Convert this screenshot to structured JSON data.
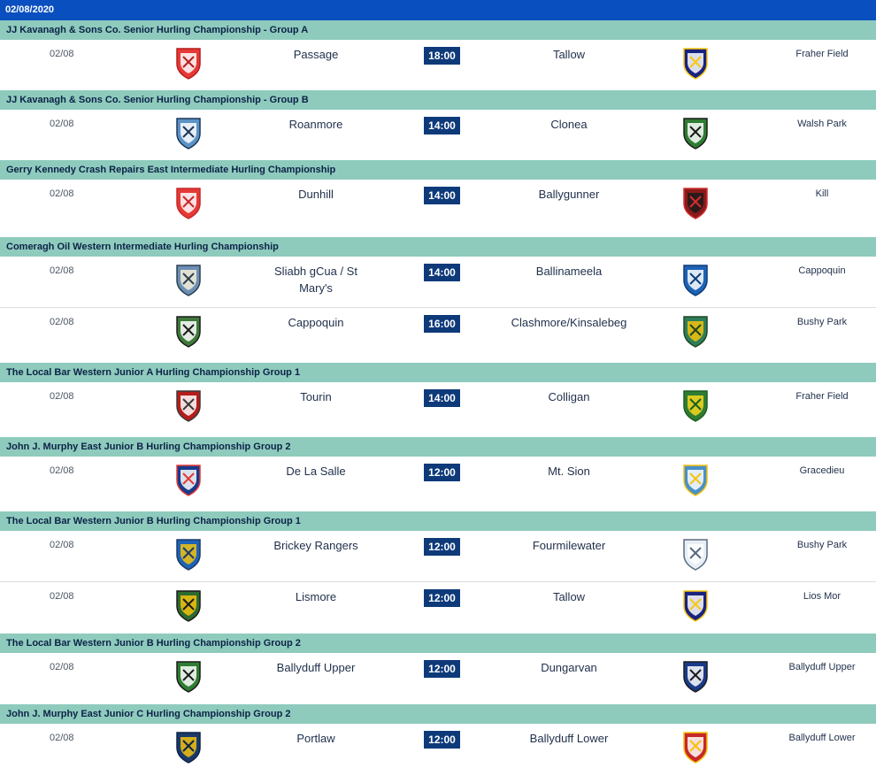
{
  "date_header": "02/08/2020",
  "colors": {
    "date_bar": "#0a4fbf",
    "comp_header": "#8ecbbd",
    "time_badge": "#0e3a7a"
  },
  "groups": [
    {
      "competition": "JJ Kavanagh & Sons Co. Senior Hurling Championship - Group A",
      "fixtures": [
        {
          "date": "02/08",
          "home": "Passage",
          "time": "18:00",
          "away": "Tallow",
          "venue": "Fraher Field",
          "home_crest": "passage-crest-icon",
          "away_crest": "tallow-crest-icon",
          "home_colors": [
            "#e53935",
            "#ffffff",
            "#b71c1c"
          ],
          "away_colors": [
            "#1a237e",
            "#ffffff",
            "#f9c80e"
          ]
        }
      ]
    },
    {
      "competition": "JJ Kavanagh & Sons Co. Senior Hurling Championship - Group B",
      "fixtures": [
        {
          "date": "02/08",
          "home": "Roanmore",
          "time": "14:00",
          "away": "Clonea",
          "venue": "Walsh Park",
          "home_crest": "roanmore-crest-icon",
          "away_crest": "clonea-crest-icon",
          "home_colors": [
            "#5b93c7",
            "#ffffff",
            "#1d3557"
          ],
          "away_colors": [
            "#2e7d32",
            "#ffffff",
            "#1b1b1b"
          ]
        }
      ]
    },
    {
      "competition": "Gerry Kennedy Crash Repairs East Intermediate Hurling Championship",
      "fixtures": [
        {
          "date": "02/08",
          "home": "Dunhill",
          "time": "14:00",
          "away": "Ballygunner",
          "venue": "Kill",
          "home_crest": "dunhill-crest-icon",
          "away_crest": "ballygunner-crest-icon",
          "home_colors": [
            "#e53935",
            "#ffffff",
            "#c62828"
          ],
          "away_colors": [
            "#8b1a1a",
            "#1b1b1b",
            "#d32f2f"
          ]
        }
      ]
    },
    {
      "competition": "Comeragh Oil Western Intermediate Hurling Championship",
      "fixtures": [
        {
          "date": "02/08",
          "home": "Sliabh gCua / St\nMary's",
          "time": "14:00",
          "away": "Ballinameela",
          "venue": "Cappoquin",
          "home_crest": "sliabh-gcua-crest-icon",
          "away_crest": "ballinameela-crest-icon",
          "home_colors": [
            "#6d8fb5",
            "#f5f0d8",
            "#2c3e50"
          ],
          "away_colors": [
            "#1e63b5",
            "#ffffff",
            "#0d3c7a"
          ]
        },
        {
          "date": "02/08",
          "home": "Cappoquin",
          "time": "16:00",
          "away": "Clashmore/Kinsalebeg",
          "venue": "Bushy Park",
          "home_crest": "cappoquin-crest-icon",
          "away_crest": "clashmore-crest-icon",
          "home_colors": [
            "#3e7a3a",
            "#ffffff",
            "#1b1b1b"
          ],
          "away_colors": [
            "#2e7d5b",
            "#f4c20d",
            "#1e4620"
          ]
        }
      ]
    },
    {
      "competition": "The Local Bar Western Junior A Hurling Championship Group 1",
      "fixtures": [
        {
          "date": "02/08",
          "home": "Tourin",
          "time": "14:00",
          "away": "Colligan",
          "venue": "Fraher Field",
          "home_crest": "tourin-crest-icon",
          "away_crest": "colligan-crest-icon",
          "home_colors": [
            "#b71c1c",
            "#ffffff",
            "#3a3a3a"
          ],
          "away_colors": [
            "#2e7d32",
            "#f9d71c",
            "#1b5e20"
          ]
        }
      ]
    },
    {
      "competition": "John J. Murphy East Junior B Hurling Championship Group 2",
      "fixtures": [
        {
          "date": "02/08",
          "home": "De La Salle",
          "time": "12:00",
          "away": "Mt. Sion",
          "venue": "Gracedieu",
          "home_crest": "de-la-salle-crest-icon",
          "away_crest": "mt-sion-crest-icon",
          "home_colors": [
            "#1a3a8a",
            "#ffffff",
            "#e53935"
          ],
          "away_colors": [
            "#4a90c8",
            "#ffffff",
            "#f4c20d"
          ]
        }
      ]
    },
    {
      "competition": "The Local Bar Western Junior B Hurling Championship Group 1",
      "fixtures": [
        {
          "date": "02/08",
          "home": "Brickey Rangers",
          "time": "12:00",
          "away": "Fourmilewater",
          "venue": "Bushy Park",
          "home_crest": "brickey-rangers-crest-icon",
          "away_crest": "fourmilewater-crest-icon",
          "home_colors": [
            "#1e63b5",
            "#f4c20d",
            "#1a3a6a"
          ],
          "away_colors": [
            "#e8eef5",
            "#ffffff",
            "#5a6b80"
          ]
        },
        {
          "date": "02/08",
          "home": "Lismore",
          "time": "12:00",
          "away": "Tallow",
          "venue": "Lios Mor",
          "home_crest": "lismore-crest-icon",
          "away_crest": "tallow-crest-icon",
          "home_colors": [
            "#2e6b2e",
            "#f4c20d",
            "#1b1b1b"
          ],
          "away_colors": [
            "#1a237e",
            "#ffffff",
            "#f9c80e"
          ]
        }
      ]
    },
    {
      "competition": "The Local Bar Western Junior B Hurling Championship Group 2",
      "fixtures": [
        {
          "date": "02/08",
          "home": "Ballyduff Upper",
          "time": "12:00",
          "away": "Dungarvan",
          "venue": "Ballyduff Upper",
          "home_crest": "ballyduff-upper-crest-icon",
          "away_crest": "dungarvan-crest-icon",
          "home_colors": [
            "#2e7d32",
            "#ffffff",
            "#1b1b1b"
          ],
          "away_colors": [
            "#1a3a8a",
            "#ffffff",
            "#1b1b1b"
          ]
        }
      ]
    },
    {
      "competition": "John J. Murphy East Junior C Hurling Championship Group 2",
      "fixtures": [
        {
          "date": "02/08",
          "home": "Portlaw",
          "time": "12:00",
          "away": "Ballyduff Lower",
          "venue": "Ballyduff Lower",
          "home_crest": "portlaw-crest-icon",
          "away_crest": "ballyduff-lower-crest-icon",
          "home_colors": [
            "#1a3a6a",
            "#f4c20d",
            "#0d2247"
          ],
          "away_colors": [
            "#c62828",
            "#ffffff",
            "#f4c20d"
          ]
        }
      ]
    }
  ]
}
